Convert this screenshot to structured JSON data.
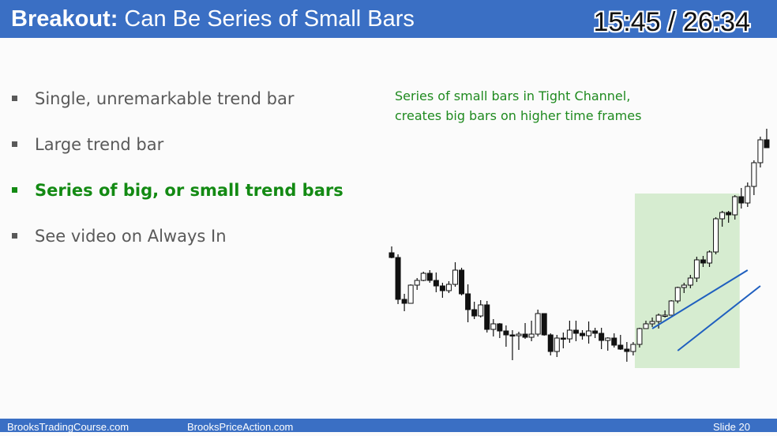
{
  "header": {
    "title_bold": "Breakout:",
    "title_rest": "Can Be Series of Small Bars",
    "timer": "15:45 / 26:34"
  },
  "bullets": [
    {
      "text": "Single, unremarkable trend bar"
    },
    {
      "text": "Large trend bar"
    },
    {
      "text": "Series of big, or small trend bars"
    },
    {
      "text": "See video on Always In"
    }
  ],
  "annotation": {
    "line1": "Series of small bars in Tight Channel,",
    "line2": "creates big bars on higher time frames"
  },
  "footer": {
    "left": "BrooksTradingCourse.com",
    "center": "BrooksPriceAction.com",
    "slide": "Slide  20"
  },
  "colors": {
    "header": "#3a6fc4",
    "highlight_text": "#138a13",
    "highlight_box": "#d6ecd0",
    "channel_lines": "#1f5fbf"
  },
  "chart_data": {
    "type": "candlestick",
    "note": "price scale not shown; values are relative",
    "candles": [
      {
        "o": 168,
        "h": 176,
        "l": 161,
        "c": 162
      },
      {
        "o": 162,
        "h": 166,
        "l": 103,
        "c": 109
      },
      {
        "o": 109,
        "h": 116,
        "l": 94,
        "c": 104
      },
      {
        "o": 104,
        "h": 128,
        "l": 104,
        "c": 127
      },
      {
        "o": 127,
        "h": 136,
        "l": 121,
        "c": 133
      },
      {
        "o": 133,
        "h": 144,
        "l": 132,
        "c": 142
      },
      {
        "o": 142,
        "h": 146,
        "l": 130,
        "c": 133
      },
      {
        "o": 133,
        "h": 143,
        "l": 118,
        "c": 126
      },
      {
        "o": 126,
        "h": 130,
        "l": 111,
        "c": 120
      },
      {
        "o": 120,
        "h": 132,
        "l": 117,
        "c": 128
      },
      {
        "o": 128,
        "h": 156,
        "l": 125,
        "c": 146
      },
      {
        "o": 146,
        "h": 149,
        "l": 114,
        "c": 116
      },
      {
        "o": 116,
        "h": 128,
        "l": 80,
        "c": 96
      },
      {
        "o": 96,
        "h": 106,
        "l": 84,
        "c": 88
      },
      {
        "o": 88,
        "h": 108,
        "l": 86,
        "c": 102
      },
      {
        "o": 102,
        "h": 107,
        "l": 67,
        "c": 71
      },
      {
        "o": 71,
        "h": 84,
        "l": 62,
        "c": 78
      },
      {
        "o": 78,
        "h": 79,
        "l": 60,
        "c": 69
      },
      {
        "o": 69,
        "h": 76,
        "l": 49,
        "c": 64
      },
      {
        "o": 64,
        "h": 70,
        "l": 32,
        "c": 63
      },
      {
        "o": 63,
        "h": 68,
        "l": 45,
        "c": 65
      },
      {
        "o": 65,
        "h": 79,
        "l": 59,
        "c": 61
      },
      {
        "o": 61,
        "h": 82,
        "l": 56,
        "c": 65
      },
      {
        "o": 65,
        "h": 96,
        "l": 62,
        "c": 91
      },
      {
        "o": 91,
        "h": 91,
        "l": 63,
        "c": 64
      },
      {
        "o": 64,
        "h": 66,
        "l": 38,
        "c": 43
      },
      {
        "o": 43,
        "h": 64,
        "l": 36,
        "c": 60
      },
      {
        "o": 60,
        "h": 67,
        "l": 47,
        "c": 59
      },
      {
        "o": 59,
        "h": 82,
        "l": 54,
        "c": 70
      },
      {
        "o": 70,
        "h": 82,
        "l": 56,
        "c": 66
      },
      {
        "o": 66,
        "h": 70,
        "l": 58,
        "c": 63
      },
      {
        "o": 63,
        "h": 81,
        "l": 53,
        "c": 69
      },
      {
        "o": 69,
        "h": 73,
        "l": 60,
        "c": 66
      },
      {
        "o": 66,
        "h": 73,
        "l": 46,
        "c": 57
      },
      {
        "o": 57,
        "h": 61,
        "l": 44,
        "c": 60
      },
      {
        "o": 60,
        "h": 66,
        "l": 48,
        "c": 51
      },
      {
        "o": 51,
        "h": 64,
        "l": 45,
        "c": 46
      },
      {
        "o": 46,
        "h": 55,
        "l": 30,
        "c": 43
      },
      {
        "o": 43,
        "h": 55,
        "l": 38,
        "c": 52
      },
      {
        "o": 52,
        "h": 73,
        "l": 48,
        "c": 72
      },
      {
        "o": 72,
        "h": 82,
        "l": 72,
        "c": 78
      },
      {
        "o": 78,
        "h": 86,
        "l": 74,
        "c": 81
      },
      {
        "o": 81,
        "h": 91,
        "l": 72,
        "c": 89
      },
      {
        "o": 89,
        "h": 95,
        "l": 86,
        "c": 89
      },
      {
        "o": 89,
        "h": 108,
        "l": 89,
        "c": 107
      },
      {
        "o": 107,
        "h": 125,
        "l": 104,
        "c": 124
      },
      {
        "o": 124,
        "h": 130,
        "l": 117,
        "c": 127
      },
      {
        "o": 127,
        "h": 140,
        "l": 123,
        "c": 136
      },
      {
        "o": 136,
        "h": 163,
        "l": 131,
        "c": 159
      },
      {
        "o": 159,
        "h": 164,
        "l": 150,
        "c": 155
      },
      {
        "o": 155,
        "h": 171,
        "l": 150,
        "c": 169
      },
      {
        "o": 169,
        "h": 213,
        "l": 166,
        "c": 211
      },
      {
        "o": 211,
        "h": 221,
        "l": 201,
        "c": 219
      },
      {
        "o": 219,
        "h": 221,
        "l": 206,
        "c": 216
      },
      {
        "o": 216,
        "h": 241,
        "l": 210,
        "c": 239
      },
      {
        "o": 239,
        "h": 250,
        "l": 224,
        "c": 231
      },
      {
        "o": 231,
        "h": 257,
        "l": 226,
        "c": 252
      },
      {
        "o": 252,
        "h": 285,
        "l": 241,
        "c": 282
      },
      {
        "o": 282,
        "h": 315,
        "l": 276,
        "c": 311
      },
      {
        "o": 311,
        "h": 325,
        "l": 303,
        "c": 301
      }
    ],
    "highlight_range": [
      39,
      54
    ],
    "channel_lines": [
      {
        "from": [
          41,
          72
        ],
        "to": [
          56,
          146
        ]
      },
      {
        "from": [
          45,
          44
        ],
        "to": [
          58,
          126
        ]
      }
    ]
  }
}
